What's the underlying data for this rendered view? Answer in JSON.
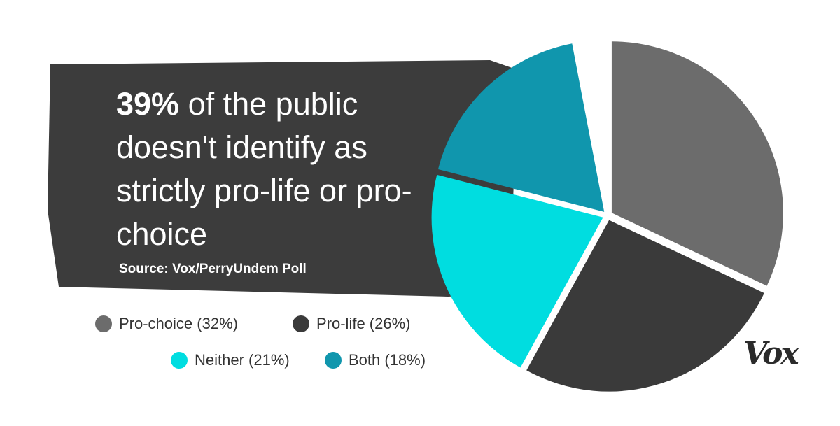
{
  "chart_data": {
    "type": "pie",
    "title_emphasis": "39%",
    "title": "of the public doesn't identify as strictly pro-life or pro-choice",
    "source": "Source: Vox/PerryUndem Poll",
    "logo": "Vox",
    "categories": [
      "Pro-choice (32%)",
      "Pro-life (26%)",
      "Neither (21%)",
      "Both (18%)"
    ],
    "values": [
      32,
      26,
      21,
      18
    ],
    "colors": [
      "#6c6c6c",
      "#3a3a3a",
      "#00dde0",
      "#1096ad"
    ]
  }
}
